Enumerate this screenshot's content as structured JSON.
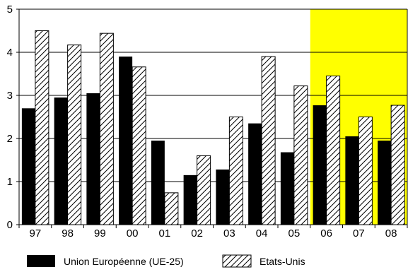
{
  "chart_data": {
    "type": "bar",
    "categories": [
      "97",
      "98",
      "99",
      "00",
      "01",
      "02",
      "03",
      "04",
      "05",
      "06",
      "07",
      "08"
    ],
    "series": [
      {
        "name": "Union Européenne (UE-25)",
        "values": [
          2.7,
          2.95,
          3.05,
          3.9,
          1.95,
          1.15,
          1.28,
          2.35,
          1.68,
          2.77,
          2.05,
          1.95
        ],
        "fill": "solid",
        "color": "#000000"
      },
      {
        "name": "Etats-Unis",
        "values": [
          4.5,
          4.17,
          4.44,
          3.66,
          0.74,
          1.6,
          2.5,
          3.9,
          3.22,
          3.45,
          2.5,
          2.77
        ],
        "fill": "hatched",
        "color": "#000000"
      }
    ],
    "ylim": [
      0,
      5
    ],
    "yticks": [
      "0",
      "1",
      "2",
      "3",
      "4",
      "5"
    ],
    "grid": true,
    "highlight": {
      "categories": [
        "06",
        "07",
        "08"
      ],
      "color": "#ffff00"
    },
    "legend": {
      "position": "bottom"
    },
    "title": "",
    "xlabel": "",
    "ylabel": ""
  }
}
